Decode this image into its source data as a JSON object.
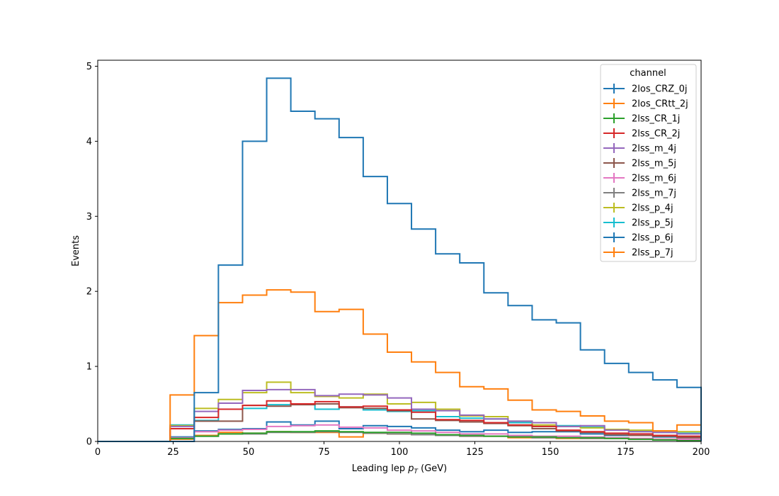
{
  "chart_data": {
    "type": "line",
    "step": "histogram",
    "xlabel_prefix": "Leading lep ",
    "xlabel_var": "p",
    "xlabel_sub": "T",
    "xlabel_suffix": " (GeV)",
    "ylabel": "Events",
    "xlim": [
      0,
      200
    ],
    "ylim": [
      0,
      5.08
    ],
    "xticks": [
      0,
      25,
      50,
      75,
      100,
      125,
      150,
      175,
      200
    ],
    "yticks": [
      0,
      1,
      2,
      3,
      4,
      5
    ],
    "bin_edges": [
      0,
      8,
      16,
      24,
      32,
      40,
      48,
      56,
      64,
      72,
      80,
      88,
      96,
      104,
      112,
      120,
      128,
      136,
      144,
      152,
      160,
      168,
      176,
      184,
      192,
      200
    ],
    "legend": {
      "title": "channel",
      "placement": "upper-right"
    },
    "series": [
      {
        "name": "2los_CRZ_0j",
        "color": "#1f77b4",
        "values": [
          0,
          0,
          0,
          0,
          0.65,
          2.35,
          4.0,
          4.84,
          4.4,
          4.3,
          4.05,
          3.53,
          3.17,
          2.83,
          2.5,
          2.38,
          1.98,
          1.81,
          1.62,
          1.58,
          1.22,
          1.04,
          0.92,
          0.82,
          0.72
        ]
      },
      {
        "name": "2los_CRtt_2j",
        "color": "#ff7f0e",
        "values": [
          0,
          0,
          0,
          0.62,
          1.41,
          1.85,
          1.95,
          2.02,
          1.99,
          1.73,
          1.76,
          1.43,
          1.19,
          1.06,
          0.92,
          0.73,
          0.7,
          0.55,
          0.42,
          0.4,
          0.34,
          0.27,
          0.25,
          0.14,
          0.22
        ]
      },
      {
        "name": "2lss_CR_1j",
        "color": "#2ca02c",
        "values": [
          0,
          0,
          0,
          0.04,
          0.07,
          0.1,
          0.11,
          0.13,
          0.13,
          0.14,
          0.13,
          0.12,
          0.12,
          0.11,
          0.09,
          0.08,
          0.07,
          0.06,
          0.06,
          0.05,
          0.05,
          0.04,
          0.03,
          0.02,
          0.01
        ]
      },
      {
        "name": "2lss_CR_2j",
        "color": "#d62728",
        "values": [
          0,
          0,
          0,
          0.17,
          0.32,
          0.43,
          0.48,
          0.54,
          0.5,
          0.53,
          0.46,
          0.47,
          0.42,
          0.39,
          0.29,
          0.28,
          0.25,
          0.22,
          0.2,
          0.15,
          0.13,
          0.11,
          0.1,
          0.08,
          0.07
        ]
      },
      {
        "name": "2lss_m_4j",
        "color": "#9467bd",
        "values": [
          0,
          0,
          0,
          0.2,
          0.4,
          0.51,
          0.68,
          0.69,
          0.69,
          0.61,
          0.63,
          0.62,
          0.58,
          0.43,
          0.41,
          0.35,
          0.3,
          0.27,
          0.25,
          0.2,
          0.21,
          0.15,
          0.13,
          0.12,
          0.1
        ]
      },
      {
        "name": "2lss_m_5j",
        "color": "#8c564b",
        "values": [
          0,
          0,
          0,
          0.17,
          0.27,
          0.27,
          0.48,
          0.47,
          0.49,
          0.5,
          0.45,
          0.44,
          0.41,
          0.3,
          0.28,
          0.26,
          0.24,
          0.21,
          0.17,
          0.14,
          0.12,
          0.09,
          0.08,
          0.07,
          0.05
        ]
      },
      {
        "name": "2lss_m_6j",
        "color": "#e377c2",
        "values": [
          0,
          0,
          0,
          0.05,
          0.13,
          0.15,
          0.16,
          0.2,
          0.21,
          0.22,
          0.19,
          0.18,
          0.15,
          0.14,
          0.12,
          0.1,
          0.1,
          0.08,
          0.07,
          0.07,
          0.06,
          0.05,
          0.04,
          0.03,
          0.03
        ]
      },
      {
        "name": "2lss_m_7j",
        "color": "#7f7f7f",
        "values": [
          0,
          0,
          0,
          0.04,
          0.07,
          0.1,
          0.1,
          0.12,
          0.12,
          0.13,
          0.12,
          0.11,
          0.1,
          0.09,
          0.08,
          0.07,
          0.07,
          0.06,
          0.05,
          0.05,
          0.04,
          0.04,
          0.03,
          0.03,
          0.02
        ]
      },
      {
        "name": "2lss_p_4j",
        "color": "#bcbd22",
        "values": [
          0,
          0,
          0,
          0.21,
          0.44,
          0.56,
          0.65,
          0.79,
          0.65,
          0.6,
          0.58,
          0.63,
          0.5,
          0.52,
          0.43,
          0.34,
          0.33,
          0.27,
          0.22,
          0.2,
          0.18,
          0.16,
          0.15,
          0.14,
          0.13
        ]
      },
      {
        "name": "2lss_p_5j",
        "color": "#17becf",
        "values": [
          0,
          0,
          0,
          0.22,
          0.28,
          0.43,
          0.44,
          0.49,
          0.5,
          0.43,
          0.46,
          0.42,
          0.4,
          0.41,
          0.33,
          0.31,
          0.3,
          0.25,
          0.2,
          0.21,
          0.19,
          0.16,
          0.14,
          0.12,
          0.11
        ]
      },
      {
        "name": "2lss_p_6j",
        "color": "#1f77b4",
        "values": [
          0,
          0,
          0,
          0.06,
          0.14,
          0.16,
          0.17,
          0.26,
          0.22,
          0.27,
          0.17,
          0.21,
          0.2,
          0.18,
          0.15,
          0.13,
          0.15,
          0.12,
          0.13,
          0.13,
          0.1,
          0.08,
          0.08,
          0.06,
          0.06
        ]
      },
      {
        "name": "2lss_p_7j",
        "color": "#ff7f0e",
        "values": [
          0,
          0,
          0,
          0.03,
          0.08,
          0.12,
          0.11,
          0.13,
          0.12,
          0.12,
          0.06,
          0.11,
          0.1,
          0.09,
          0.08,
          0.07,
          0.07,
          0.05,
          0.05,
          0.04,
          0.04,
          0.04,
          0.03,
          0.03,
          0.03
        ]
      }
    ]
  }
}
